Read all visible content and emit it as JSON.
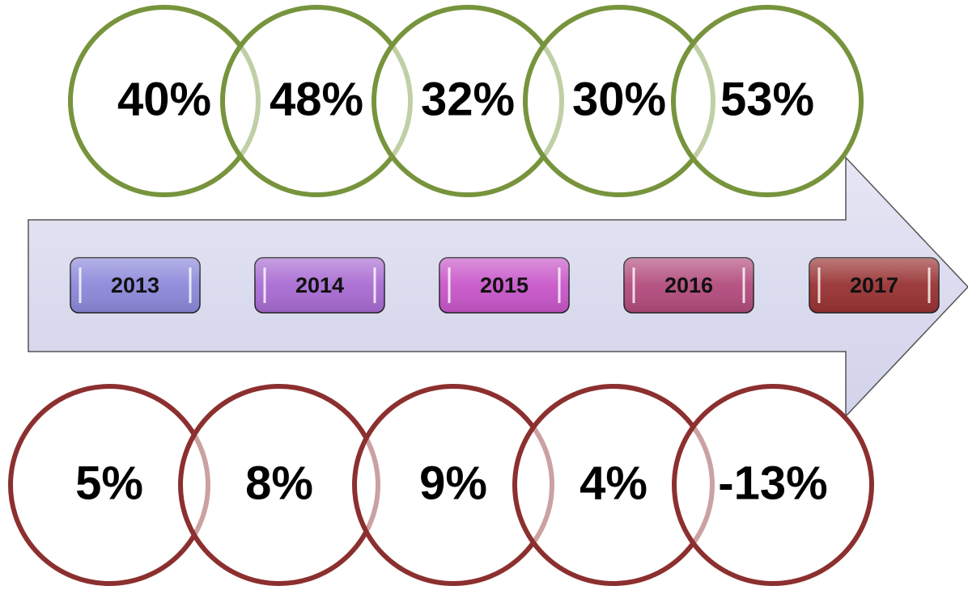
{
  "years": [
    "2013",
    "2014",
    "2015",
    "2016",
    "2017"
  ],
  "top_row": [
    "40%",
    "48%",
    "32%",
    "30%",
    "53%"
  ],
  "bottom_row": [
    "5%",
    "8%",
    "9%",
    "4%",
    "-13%"
  ]
}
